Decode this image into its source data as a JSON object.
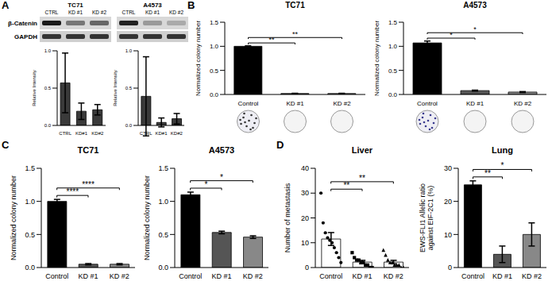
{
  "figure": {
    "panel_labels": [
      "A",
      "B",
      "C",
      "D"
    ],
    "blot": {
      "cell_lines": [
        "TC71",
        "A4573"
      ],
      "lanes": [
        "CTRL",
        "KD #1",
        "KD #2"
      ],
      "proteins": [
        "β-Catenin",
        "GAPDH"
      ]
    }
  },
  "chart_data": [
    {
      "type": "bar",
      "categories": [
        "CTRL",
        "KD#1",
        "KD#2"
      ],
      "values": [
        0.57,
        0.19,
        0.21
      ],
      "errors": [
        0.4,
        0.11,
        0.07
      ],
      "color": "#3a3a3a",
      "y_label": "Relative Intensity",
      "ylim": [
        0,
        1.0
      ],
      "yticks": [
        {
          "value": 0,
          "label": "0.0"
        },
        {
          "value": 0.5,
          "label": "0.5"
        },
        {
          "value": 1.0,
          "label": "1.0"
        }
      ]
    },
    {
      "type": "bar",
      "categories": [
        "CTRL",
        "KD#1",
        "KD#2"
      ],
      "values": [
        0.39,
        0.04,
        0.09
      ],
      "errors": [
        0.53,
        0.06,
        0.07
      ],
      "color": "#3a3a3a",
      "y_label": "Relative Intensity",
      "ylim": [
        0,
        1.0
      ],
      "yticks": [
        {
          "value": 0,
          "label": "0.0"
        },
        {
          "value": 0.5,
          "label": "0.5"
        },
        {
          "value": 1.0,
          "label": "1.0"
        }
      ]
    },
    {
      "type": "bar",
      "title": "TC71",
      "categories": [
        "Control",
        "KD #1",
        "KD #2"
      ],
      "values": [
        1.0,
        0.02,
        0.02
      ],
      "errors": [
        0.01,
        0.005,
        0.005
      ],
      "colors": [
        "#000000",
        "#555555",
        "#888888"
      ],
      "y_label": "Normalized colony number",
      "ylim": [
        0,
        1.5
      ],
      "yticks": [
        {
          "value": 0,
          "label": "0.0"
        },
        {
          "value": 0.5,
          "label": "0.5"
        },
        {
          "value": 1.0,
          "label": "1.0"
        },
        {
          "value": 1.5,
          "label": "1.5"
        }
      ],
      "significance": [
        {
          "between": [
            "Control",
            "KD #1"
          ],
          "label": "**"
        },
        {
          "between": [
            "Control",
            "KD #2"
          ],
          "label": "**"
        }
      ]
    },
    {
      "type": "bar",
      "title": "A4573",
      "categories": [
        "Control",
        "KD #1",
        "KD #2"
      ],
      "values": [
        1.07,
        0.08,
        0.05
      ],
      "errors": [
        0.04,
        0.01,
        0.01
      ],
      "colors": [
        "#000000",
        "#555555",
        "#888888"
      ],
      "y_label": "Normalized colony number",
      "ylim": [
        0,
        1.5
      ],
      "yticks": [
        {
          "value": 0,
          "label": "0.0"
        },
        {
          "value": 0.5,
          "label": "0.5"
        },
        {
          "value": 1.0,
          "label": "1.0"
        },
        {
          "value": 1.5,
          "label": "1.5"
        }
      ],
      "significance": [
        {
          "between": [
            "Control",
            "KD #1"
          ],
          "label": "*"
        },
        {
          "between": [
            "Control",
            "KD #2"
          ],
          "label": "*"
        }
      ]
    },
    {
      "type": "bar",
      "title": "TC71",
      "categories": [
        "Control",
        "KD #1",
        "KD #2"
      ],
      "values": [
        1.0,
        0.05,
        0.05
      ],
      "errors": [
        0.03,
        0.01,
        0.01
      ],
      "colors": [
        "#000000",
        "#555555",
        "#888888"
      ],
      "y_label": "Normalized colony number",
      "ylim": [
        0,
        1.5
      ],
      "yticks": [
        {
          "value": 0,
          "label": "0.0"
        },
        {
          "value": 0.5,
          "label": "0.5"
        },
        {
          "value": 1.0,
          "label": "1.0"
        },
        {
          "value": 1.5,
          "label": "1.5"
        }
      ],
      "significance": [
        {
          "between": [
            "Control",
            "KD #1"
          ],
          "label": "****"
        },
        {
          "between": [
            "Control",
            "KD #2"
          ],
          "label": "****"
        }
      ]
    },
    {
      "type": "bar",
      "title": "A4573",
      "categories": [
        "Control",
        "KD #1",
        "KD #2"
      ],
      "values": [
        1.1,
        0.53,
        0.46
      ],
      "errors": [
        0.04,
        0.02,
        0.02
      ],
      "colors": [
        "#000000",
        "#555555",
        "#888888"
      ],
      "y_label": "Normalized colony number",
      "ylim": [
        0,
        1.5
      ],
      "yticks": [
        {
          "value": 0,
          "label": "0.0"
        },
        {
          "value": 0.5,
          "label": "0.5"
        },
        {
          "value": 1.0,
          "label": "1.0"
        },
        {
          "value": 1.5,
          "label": "1.5"
        }
      ],
      "significance": [
        {
          "between": [
            "Control",
            "KD #1"
          ],
          "label": "*"
        },
        {
          "between": [
            "Control",
            "KD #2"
          ],
          "label": "*"
        }
      ]
    },
    {
      "type": "bar",
      "title": "Liver",
      "categories": [
        "Control",
        "KD #1",
        "KD #2"
      ],
      "values": [
        11.5,
        2.2,
        2.2
      ],
      "errors": [
        2.6,
        0.7,
        0.7
      ],
      "color": "#ffffff",
      "y_label": "Number of metastasis",
      "ylim": [
        0,
        40
      ],
      "yticks": [
        0,
        10,
        20,
        30,
        40
      ],
      "points": [
        {
          "values": [
            30,
            18,
            14,
            12,
            11,
            10,
            8,
            6,
            4,
            2
          ],
          "marker": "circle"
        },
        {
          "values": [
            6,
            4,
            3,
            3,
            2,
            2,
            1,
            1,
            0,
            0
          ],
          "marker": "square"
        },
        {
          "values": [
            7,
            5,
            3,
            2,
            2,
            1,
            1,
            1,
            0,
            0
          ],
          "marker": "triangle"
        }
      ],
      "significance": [
        {
          "between": [
            "Control",
            "KD #1"
          ],
          "label": "**"
        },
        {
          "between": [
            "Control",
            "KD #2"
          ],
          "label": "**"
        }
      ]
    },
    {
      "type": "bar",
      "title": "Lung",
      "categories": [
        "Control",
        "KD #1",
        "KD #2"
      ],
      "values": [
        25,
        4,
        10
      ],
      "errors": [
        1.2,
        2.5,
        3.5
      ],
      "colors": [
        "#000000",
        "#555555",
        "#888888"
      ],
      "y_label": [
        "EWS-FLI1 Allelic ratio",
        "against EIF-2C1 (%)"
      ],
      "ylim": [
        0,
        30
      ],
      "yticks": [
        0,
        10,
        20,
        30
      ],
      "significance": [
        {
          "between": [
            "Control",
            "KD #1"
          ],
          "label": "**"
        },
        {
          "between": [
            "Control",
            "KD #2"
          ],
          "label": "*"
        }
      ]
    }
  ]
}
